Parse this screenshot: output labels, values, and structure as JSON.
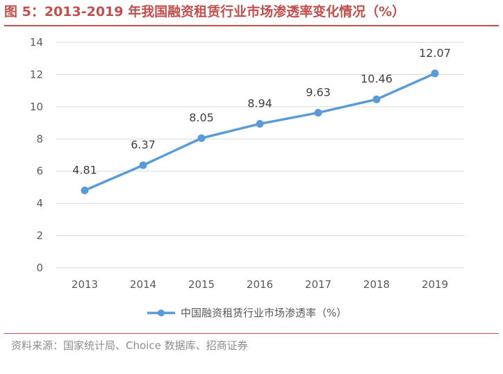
{
  "figure": {
    "title": "图 5：2013-2019 年我国融资租赁行业市场渗透率变化情况（%）",
    "source": "资料来源：国家统计局、Choice 数据库、招商证券"
  },
  "chart_data": {
    "type": "line",
    "categories": [
      "2013",
      "2014",
      "2015",
      "2016",
      "2017",
      "2018",
      "2019"
    ],
    "series": [
      {
        "name": "中国融资租赁行业市场渗透率（%）",
        "values": [
          4.81,
          6.37,
          8.05,
          8.94,
          9.63,
          10.46,
          12.07
        ],
        "labels": [
          "4.81",
          "6.37",
          "8.05",
          "8.94",
          "9.63",
          "10.46",
          "12.07"
        ],
        "color": "#5b9bd5"
      }
    ],
    "ylim": [
      0,
      14
    ],
    "yticks": [
      "0",
      "2",
      "4",
      "6",
      "8",
      "10",
      "12",
      "14"
    ],
    "grid": true,
    "legend": "bottom-center"
  },
  "colors": {
    "accent": "#c0504d",
    "axis_text": "#595959",
    "grid": "#d9d9d9"
  }
}
